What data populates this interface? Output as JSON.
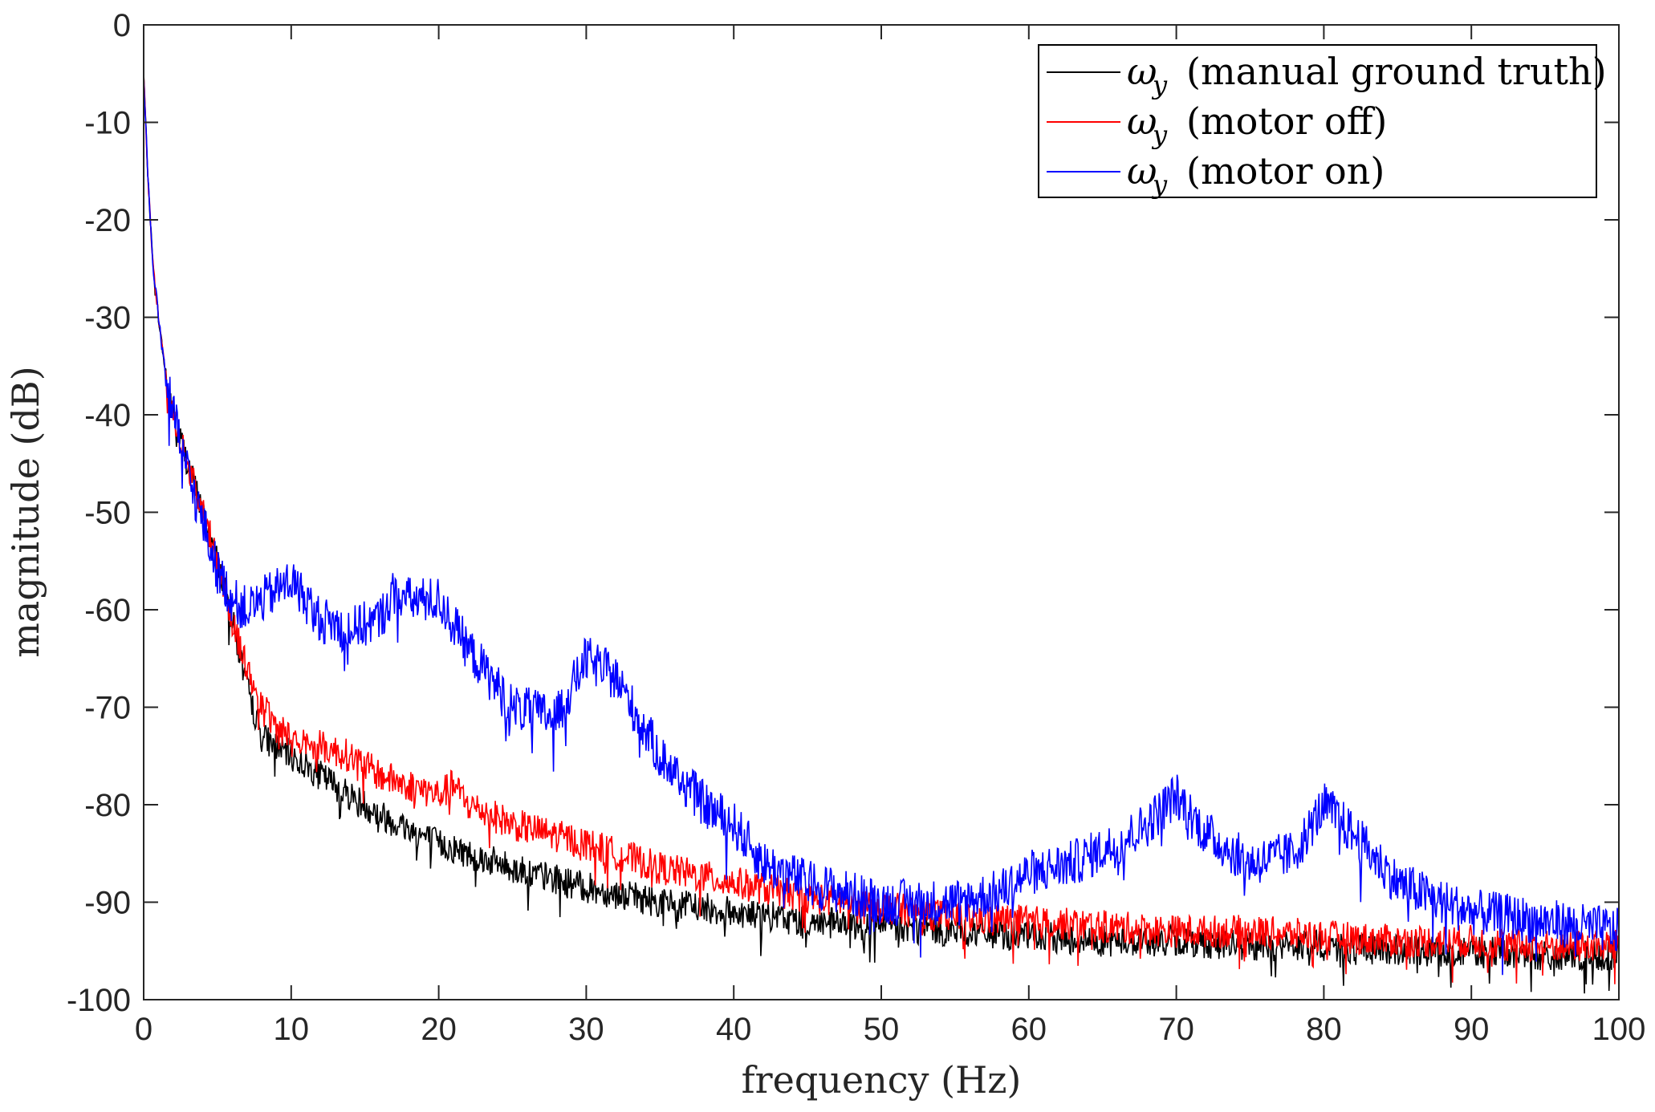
{
  "chart_data": {
    "type": "line",
    "title": "",
    "xlabel": "frequency (Hz)",
    "ylabel": "magnitude (dB)",
    "xlim": [
      0,
      100
    ],
    "ylim": [
      -100,
      0
    ],
    "grid": false,
    "legend_position": "top-right",
    "x_ticks": [
      0,
      10,
      20,
      30,
      40,
      50,
      60,
      70,
      80,
      90,
      100
    ],
    "y_ticks": [
      0,
      -10,
      -20,
      -30,
      -40,
      -50,
      -60,
      -70,
      -80,
      -90,
      -100
    ],
    "x_tick_labels": [
      "0",
      "10",
      "20",
      "30",
      "40",
      "50",
      "60",
      "70",
      "80",
      "90",
      "100"
    ],
    "y_tick_labels": [
      "0",
      "-10",
      "-20",
      "-30",
      "-40",
      "-50",
      "-60",
      "-70",
      "-80",
      "-90",
      "-100"
    ],
    "legend_symbol": "ω",
    "legend_subscript": "y",
    "noise_db": {
      "black": 1.6,
      "red": 1.7,
      "blue": 2.4
    },
    "series": [
      {
        "name": "ωy (manual ground truth)",
        "legend_suffix": "(manual ground truth)",
        "color": "#000000",
        "x": [
          0,
          0.3,
          0.6,
          1,
          1.5,
          2,
          3,
          4,
          5,
          6,
          7,
          8,
          9,
          10,
          12,
          14,
          16,
          18,
          20,
          25,
          30,
          35,
          40,
          45,
          50,
          55,
          60,
          65,
          70,
          75,
          80,
          85,
          90,
          95,
          100
        ],
        "values": [
          -5,
          -16,
          -24,
          -30,
          -36,
          -40,
          -45,
          -50,
          -55,
          -61,
          -68,
          -73,
          -74,
          -75,
          -77,
          -79,
          -81,
          -82.5,
          -84,
          -86.5,
          -88.5,
          -90,
          -91,
          -92,
          -92.5,
          -93,
          -93.5,
          -94,
          -94,
          -94.5,
          -94.5,
          -95,
          -95,
          -95.5,
          -95.5
        ]
      },
      {
        "name": "ωy (motor off)",
        "legend_suffix": "(motor off)",
        "color": "#ff0000",
        "x": [
          0,
          0.3,
          0.6,
          1,
          1.5,
          2,
          3,
          4,
          5,
          6,
          7,
          8,
          9,
          10,
          12,
          14,
          16,
          18,
          20,
          21,
          22,
          25,
          30,
          35,
          40,
          45,
          50,
          55,
          60,
          65,
          70,
          75,
          80,
          85,
          90,
          95,
          100
        ],
        "values": [
          -5,
          -16,
          -24,
          -30,
          -36,
          -40,
          -45,
          -50,
          -55,
          -61,
          -66,
          -70,
          -72,
          -73,
          -74,
          -75,
          -77,
          -78,
          -79,
          -78,
          -80,
          -82,
          -84,
          -86.5,
          -88,
          -89.5,
          -90.5,
          -91.5,
          -92,
          -92.5,
          -93,
          -93,
          -93.5,
          -94,
          -94,
          -94.5,
          -94.5
        ]
      },
      {
        "name": "ωy (motor on)",
        "legend_suffix": "(motor on)",
        "color": "#0000ff",
        "x": [
          0,
          0.3,
          0.6,
          1,
          1.5,
          2,
          3,
          4,
          5,
          6,
          7,
          8,
          9,
          10,
          12,
          14,
          16,
          17,
          18,
          20,
          22,
          25,
          28,
          30,
          32,
          35,
          38,
          40,
          42,
          45,
          50,
          55,
          58,
          60,
          63,
          66,
          68,
          70,
          72,
          75,
          78,
          80,
          82,
          85,
          88,
          90,
          95,
          100
        ],
        "values": [
          -5,
          -16,
          -24,
          -30,
          -36,
          -40,
          -46,
          -51,
          -56,
          -59,
          -60,
          -59,
          -58,
          -57,
          -61,
          -62,
          -61,
          -58,
          -59,
          -59,
          -64,
          -70,
          -71,
          -65,
          -67,
          -75,
          -80,
          -82,
          -86,
          -88,
          -90,
          -90,
          -89,
          -87,
          -86,
          -84,
          -82,
          -79,
          -83,
          -86,
          -85,
          -80,
          -83,
          -88,
          -90,
          -91,
          -92,
          -93
        ]
      }
    ]
  }
}
